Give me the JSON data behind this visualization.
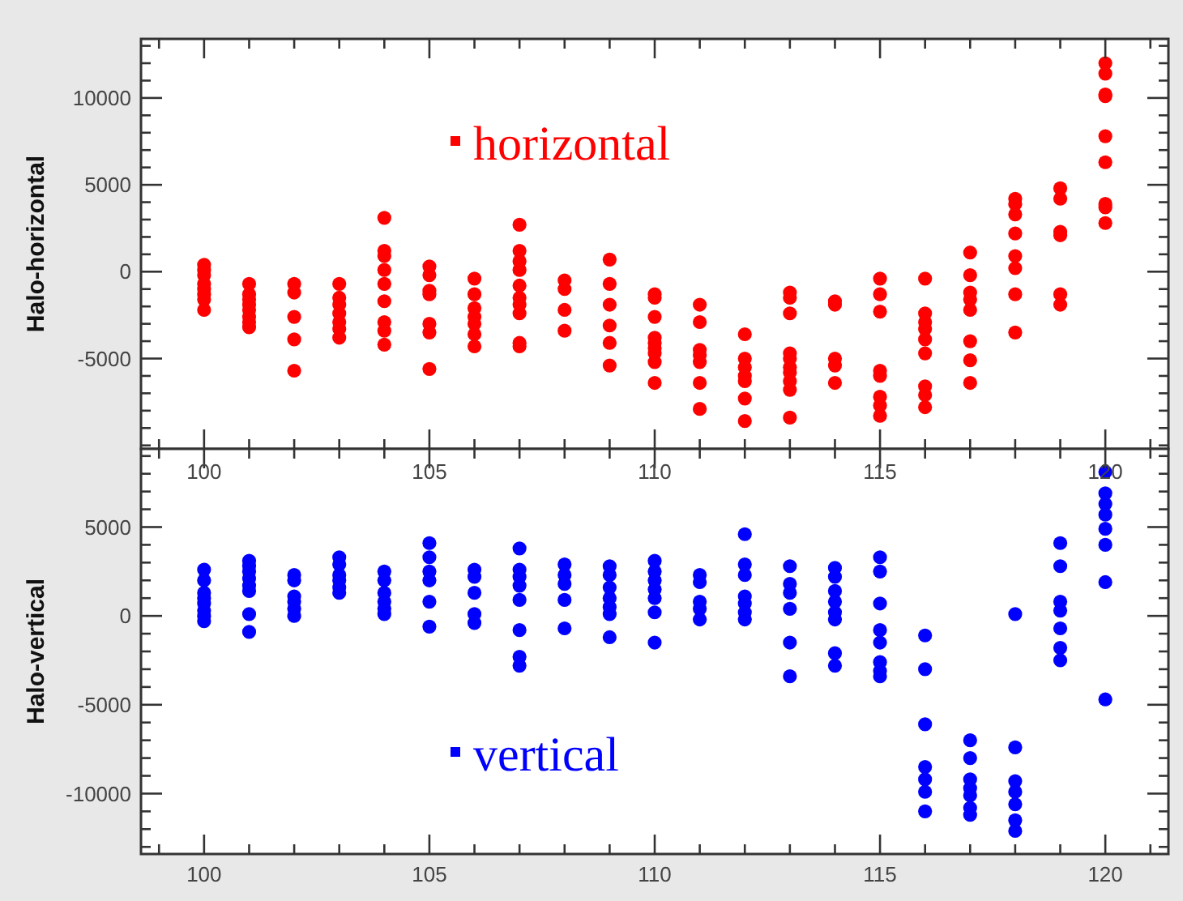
{
  "chart_data": [
    {
      "type": "scatter",
      "ylabel": "Halo-horizontal",
      "xlim": [
        98.6,
        121.4
      ],
      "xticks": [
        100,
        105,
        110,
        115,
        120
      ],
      "tick_labels": "y",
      "ylim": [
        -10200,
        13400
      ],
      "yticks": [
        -5000,
        0,
        5000,
        10000
      ],
      "legend": "top",
      "marker": "circle",
      "grid": false,
      "series": [
        {
          "name": "horizontal",
          "color": "#ff0000",
          "x": [
            100,
            100,
            100,
            100,
            100,
            100,
            100,
            100,
            101,
            101,
            101,
            101,
            101,
            101,
            101,
            101,
            102,
            102,
            102,
            102,
            102,
            103,
            103,
            103,
            103,
            103,
            103,
            103,
            104,
            104,
            104,
            104,
            104,
            104,
            104,
            104,
            104,
            105,
            105,
            105,
            105,
            105,
            105,
            105,
            106,
            106,
            106,
            106,
            106,
            106,
            106,
            107,
            107,
            107,
            107,
            107,
            107,
            107,
            107,
            107,
            107,
            108,
            108,
            108,
            108,
            109,
            109,
            109,
            109,
            109,
            109,
            110,
            110,
            110,
            110,
            110,
            110,
            110,
            110,
            110,
            111,
            111,
            111,
            111,
            111,
            111,
            111,
            112,
            112,
            112,
            112,
            112,
            112,
            112,
            113,
            113,
            113,
            113,
            113,
            113,
            113,
            113,
            113,
            113,
            114,
            114,
            114,
            114,
            114,
            115,
            115,
            115,
            115,
            115,
            115,
            115,
            115,
            116,
            116,
            116,
            116,
            116,
            116,
            116,
            116,
            116,
            117,
            117,
            117,
            117,
            117,
            117,
            117,
            117,
            118,
            118,
            118,
            118,
            118,
            118,
            118,
            118,
            119,
            119,
            119,
            119,
            119,
            119,
            120,
            120,
            120,
            120,
            120,
            120,
            120,
            120,
            120
          ],
          "values": [
            400,
            100,
            -200,
            -700,
            -1000,
            -1300,
            -1600,
            -2200,
            -700,
            -1300,
            -1600,
            -1900,
            -2200,
            -2600,
            -2900,
            -3200,
            -700,
            -1200,
            -2600,
            -3900,
            -5700,
            -700,
            -1500,
            -1900,
            -2400,
            -2900,
            -3300,
            -3800,
            3100,
            1200,
            900,
            100,
            -700,
            -1700,
            -2900,
            -3400,
            -4200,
            300,
            -200,
            -1100,
            -1300,
            -3000,
            -3500,
            -5600,
            -400,
            -1300,
            -2100,
            -2600,
            -3000,
            -3600,
            -4300,
            2700,
            1200,
            600,
            100,
            -800,
            -1500,
            -1900,
            -2400,
            -4100,
            -4300,
            -500,
            -1000,
            -2200,
            -3400,
            700,
            -700,
            -1900,
            -3100,
            -4100,
            -5400,
            -1300,
            -1500,
            -2600,
            -3800,
            -4100,
            -4400,
            -4700,
            -5200,
            -6400,
            -1900,
            -2900,
            -4500,
            -4800,
            -5200,
            -6400,
            -7900,
            -3600,
            -5000,
            -5500,
            -6000,
            -6300,
            -7300,
            -8600,
            -1200,
            -1500,
            -2400,
            -4700,
            -5000,
            -5500,
            -5800,
            -6300,
            -6800,
            -8400,
            -1700,
            -1900,
            -5000,
            -5400,
            -6400,
            -400,
            -1300,
            -2300,
            -5700,
            -6000,
            -7200,
            -7700,
            -8300,
            -400,
            -2400,
            -2900,
            -3300,
            -3900,
            -4700,
            -6600,
            -7100,
            -7800,
            1100,
            -200,
            -1200,
            -1600,
            -2200,
            -4000,
            -5100,
            -6400,
            4200,
            3900,
            3300,
            2200,
            900,
            200,
            -1300,
            -3500,
            4800,
            4200,
            2300,
            2100,
            -1300,
            -1900,
            12000,
            11400,
            10200,
            10100,
            7800,
            6300,
            3900,
            3700,
            2800
          ]
        }
      ]
    },
    {
      "type": "scatter",
      "ylabel": "Halo-vertical",
      "xlim": [
        98.6,
        121.4
      ],
      "xticks": [
        100,
        105,
        110,
        115,
        120
      ],
      "x2lim": [
        98.6,
        121.4
      ],
      "x2ticks": [
        100,
        105,
        110,
        115,
        120
      ],
      "ylim": [
        -13400,
        9400
      ],
      "yticks": [
        -10000,
        -5000,
        0,
        5000
      ],
      "legend": "bottom",
      "marker": "circle",
      "grid": false,
      "series": [
        {
          "name": "vertical",
          "color": "#0000ff",
          "x": [
            100,
            100,
            100,
            100,
            100,
            100,
            100,
            100,
            101,
            101,
            101,
            101,
            101,
            101,
            101,
            101,
            102,
            102,
            102,
            102,
            102,
            102,
            103,
            103,
            103,
            103,
            103,
            103,
            104,
            104,
            104,
            104,
            104,
            104,
            105,
            105,
            105,
            105,
            105,
            105,
            106,
            106,
            106,
            106,
            106,
            107,
            107,
            107,
            107,
            107,
            107,
            107,
            107,
            108,
            108,
            108,
            108,
            108,
            109,
            109,
            109,
            109,
            109,
            109,
            109,
            110,
            110,
            110,
            110,
            110,
            110,
            110,
            111,
            111,
            111,
            111,
            111,
            112,
            112,
            112,
            112,
            112,
            112,
            112,
            113,
            113,
            113,
            113,
            113,
            113,
            114,
            114,
            114,
            114,
            114,
            114,
            114,
            114,
            115,
            115,
            115,
            115,
            115,
            115,
            115,
            115,
            116,
            116,
            116,
            116,
            116,
            116,
            116,
            117,
            117,
            117,
            117,
            117,
            117,
            117,
            118,
            118,
            118,
            118,
            118,
            118,
            118,
            119,
            119,
            119,
            119,
            119,
            119,
            119,
            120,
            120,
            120,
            120,
            120,
            120,
            120,
            120
          ],
          "values": [
            2600,
            2000,
            1300,
            1000,
            700,
            300,
            0,
            -300,
            3100,
            2800,
            2500,
            2100,
            1700,
            1400,
            100,
            -900,
            2300,
            2000,
            1100,
            800,
            400,
            0,
            3300,
            2900,
            2300,
            2000,
            1600,
            1300,
            2500,
            2000,
            1300,
            800,
            400,
            100,
            4100,
            3300,
            2500,
            2000,
            800,
            -600,
            2600,
            2200,
            1300,
            100,
            -400,
            3800,
            2600,
            2200,
            1700,
            900,
            -800,
            -2300,
            -2800,
            2900,
            2300,
            1800,
            900,
            -700,
            2800,
            2300,
            1600,
            1000,
            500,
            100,
            -1200,
            3100,
            2500,
            2000,
            1500,
            1000,
            200,
            -1500,
            2300,
            1900,
            800,
            400,
            -200,
            4600,
            2900,
            2300,
            1100,
            700,
            200,
            -200,
            2800,
            1800,
            1300,
            400,
            -1500,
            -3400,
            2700,
            2200,
            1400,
            800,
            200,
            -200,
            -2100,
            -2800,
            3300,
            2500,
            700,
            -800,
            -1500,
            -2600,
            -3100,
            -3400,
            -1100,
            -3000,
            -6100,
            -8500,
            -9200,
            -9900,
            -11000,
            -7000,
            -8000,
            -9200,
            -9700,
            -10100,
            -10800,
            -11200,
            100,
            -7400,
            -9300,
            -9900,
            -10600,
            -11500,
            -12100,
            4100,
            2800,
            800,
            300,
            -700,
            -1800,
            -2500,
            8100,
            6900,
            6300,
            5700,
            4900,
            4000,
            1900,
            -4700
          ]
        }
      ]
    }
  ]
}
